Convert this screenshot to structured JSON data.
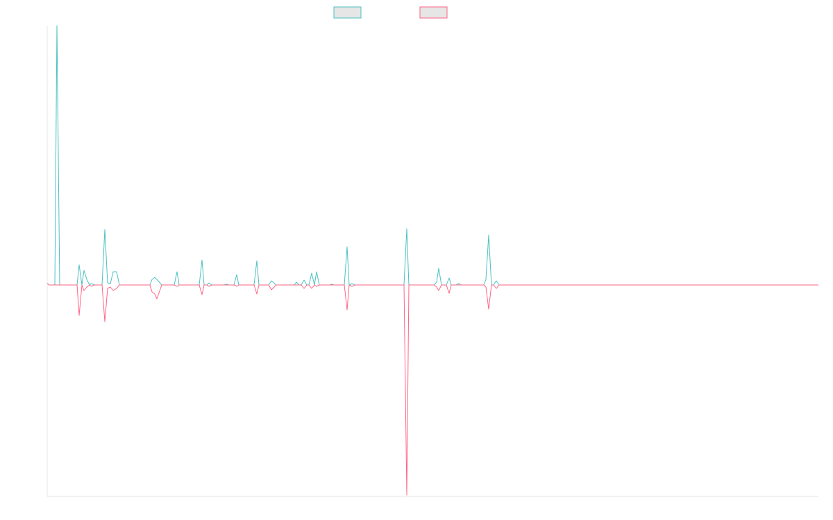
{
  "chart_data": {
    "type": "line",
    "x": [
      0,
      3,
      11,
      14,
      18,
      43,
      46,
      50,
      53,
      57,
      61,
      64,
      68,
      79,
      83,
      87,
      91,
      95,
      100,
      104,
      148,
      151,
      155,
      158,
      165,
      183,
      187,
      190,
      219,
      223,
      226,
      230,
      233,
      237,
      255,
      258,
      262,
      269,
      273,
      276,
      298,
      302,
      305,
      319,
      323,
      330,
      356,
      359,
      363,
      366,
      370,
      374,
      377,
      381,
      385,
      388,
      392,
      407,
      410,
      413,
      428,
      432,
      435,
      439,
      443,
      514,
      518,
      521,
      557,
      561,
      564,
      568,
      575,
      579,
      582,
      589,
      593,
      596,
      629,
      632,
      636,
      640,
      643,
      647,
      651,
      1111
    ],
    "series": [
      {
        "color": "#4bc0c0",
        "values": [
          2,
          0,
          0,
          374,
          0,
          0,
          29,
          0,
          21,
          8,
          0,
          2,
          0,
          0,
          80,
          3,
          2,
          19,
          19,
          0,
          0,
          8,
          11,
          8,
          0,
          0,
          19,
          0,
          0,
          36,
          0,
          0,
          3,
          0,
          0,
          1,
          0,
          0,
          15,
          0,
          0,
          35,
          0,
          0,
          6,
          0,
          0,
          4,
          0,
          0,
          7,
          0,
          0,
          17,
          0,
          19,
          0,
          0,
          1,
          0,
          0,
          55,
          0,
          2,
          0,
          0,
          81,
          0,
          0,
          4,
          24,
          0,
          0,
          10,
          0,
          0,
          2,
          0,
          0,
          8,
          72,
          0,
          0,
          6,
          0,
          0
        ]
      },
      {
        "color": "#ff6384",
        "values": [
          2,
          0,
          0,
          0,
          0,
          0,
          -44,
          0,
          -8,
          -3,
          0,
          -2,
          0,
          0,
          -53,
          -5,
          -3,
          -8,
          -5,
          0,
          0,
          -10,
          -13,
          -20,
          0,
          0,
          -2,
          0,
          0,
          -14,
          0,
          0,
          -2,
          0,
          0,
          0,
          0,
          0,
          -2,
          0,
          0,
          -13,
          0,
          0,
          -7,
          0,
          0,
          0,
          0,
          0,
          -5,
          0,
          0,
          -5,
          0,
          -2,
          0,
          0,
          0,
          0,
          0,
          -36,
          0,
          -2,
          0,
          0,
          -303,
          0,
          0,
          -3,
          -8,
          0,
          0,
          -12,
          0,
          0,
          0,
          0,
          0,
          -3,
          -35,
          0,
          0,
          -5,
          0,
          0
        ]
      }
    ],
    "xlim": [
      0,
      1111
    ],
    "ylim": [
      -305,
      374
    ]
  }
}
